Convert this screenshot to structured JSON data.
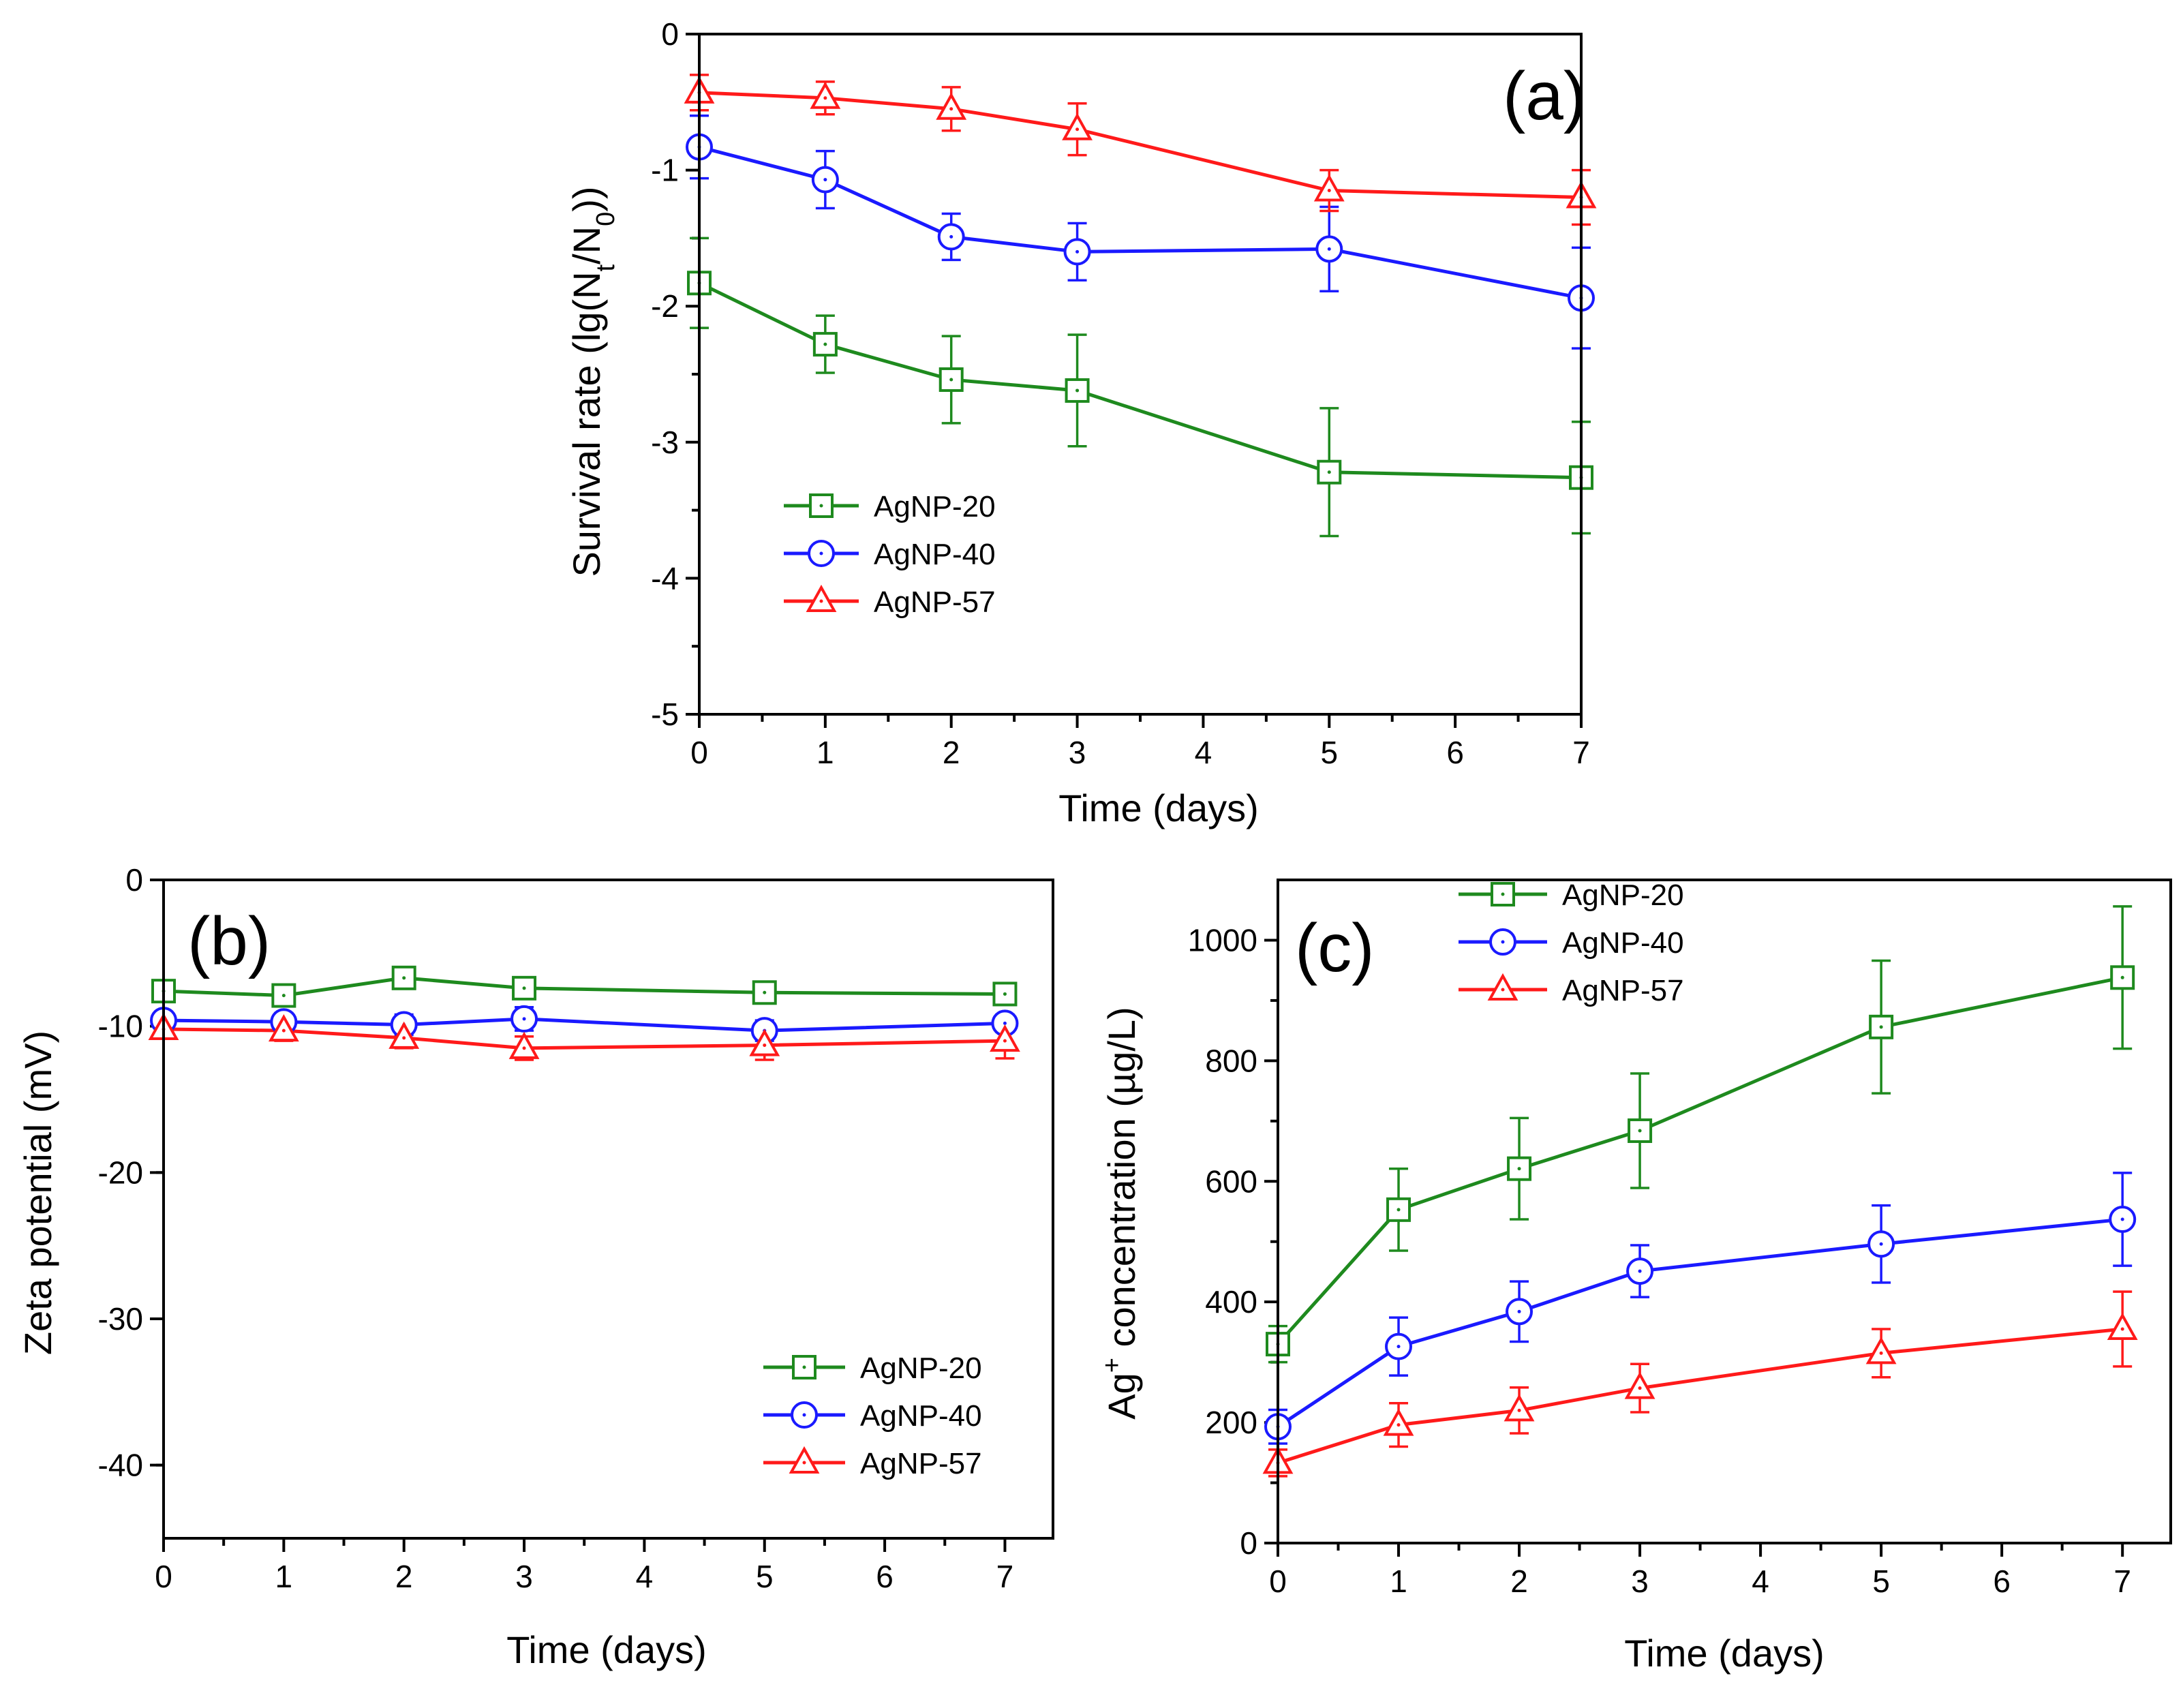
{
  "chart_data": [
    {
      "type": "line",
      "panel_label": "(a)",
      "title": "",
      "xlabel": "Time (days)",
      "ylabel_main": "Survival rate (lg(N",
      "ylabel_sub_t": "t",
      "ylabel_mid": "/N",
      "ylabel_sub_0": "0",
      "ylabel_end": "))",
      "xlim": [
        0,
        7
      ],
      "ylim": [
        -5,
        0
      ],
      "x_ticks": [
        "0",
        "1",
        "2",
        "3",
        "4",
        "5",
        "6",
        "7"
      ],
      "y_ticks": [
        "0",
        "-1",
        "-2",
        "-3",
        "-4",
        "-5"
      ],
      "x": [
        0,
        1,
        2,
        3,
        5,
        7
      ],
      "legend_position": "lower-left",
      "series": [
        {
          "name": "AgNP-20",
          "color": "#1e8a1e",
          "marker": "square",
          "values": [
            -1.83,
            -2.28,
            -2.54,
            -2.62,
            -3.22,
            -3.26
          ],
          "errors": [
            0.33,
            0.21,
            0.32,
            0.41,
            0.47,
            0.41
          ]
        },
        {
          "name": "AgNP-40",
          "color": "#1a1aff",
          "marker": "circle",
          "values": [
            -0.83,
            -1.07,
            -1.49,
            -1.6,
            -1.58,
            -1.94
          ],
          "errors": [
            0.23,
            0.21,
            0.17,
            0.21,
            0.31,
            0.37
          ]
        },
        {
          "name": "AgNP-57",
          "color": "#ff1a1a",
          "marker": "triangle",
          "values": [
            -0.43,
            -0.47,
            -0.55,
            -0.7,
            -1.15,
            -1.2
          ],
          "errors": [
            0.13,
            0.12,
            0.16,
            0.19,
            0.15,
            0.2
          ]
        }
      ]
    },
    {
      "type": "line",
      "panel_label": "(b)",
      "title": "",
      "xlabel": "Time (days)",
      "ylabel": "Zeta potential (mV)",
      "xlim": [
        0,
        7.4
      ],
      "ylim": [
        -45,
        0
      ],
      "x_ticks": [
        "0",
        "1",
        "2",
        "3",
        "4",
        "5",
        "6",
        "7"
      ],
      "y_ticks": [
        "0",
        "-10",
        "-20",
        "-30",
        "-40"
      ],
      "x": [
        0,
        1,
        2,
        3,
        5,
        7
      ],
      "legend_position": "lower-right",
      "series": [
        {
          "name": "AgNP-20",
          "color": "#1e8a1e",
          "marker": "square",
          "values": [
            -7.6,
            -7.9,
            -6.7,
            -7.4,
            -7.7,
            -7.8
          ],
          "errors": [
            0.4,
            0.5,
            0.5,
            0.5,
            0.4,
            0.4
          ]
        },
        {
          "name": "AgNP-40",
          "color": "#1a1aff",
          "marker": "circle",
          "values": [
            -9.6,
            -9.7,
            -9.9,
            -9.5,
            -10.3,
            -9.8
          ],
          "errors": [
            0.6,
            0.6,
            0.7,
            0.8,
            0.7,
            0.6
          ]
        },
        {
          "name": "AgNP-57",
          "color": "#ff1a1a",
          "marker": "triangle",
          "values": [
            -10.2,
            -10.3,
            -10.8,
            -11.5,
            -11.3,
            -11.0
          ],
          "errors": [
            0.6,
            0.7,
            0.7,
            0.8,
            1.0,
            1.2
          ]
        }
      ]
    },
    {
      "type": "line",
      "panel_label": "(c)",
      "title": "",
      "xlabel": "Time (days)",
      "ylabel_pre": "Ag",
      "ylabel_sup": "+",
      "ylabel_post": " concentration (µg/L)",
      "xlim": [
        0,
        7.4
      ],
      "ylim": [
        0,
        1100
      ],
      "x_ticks": [
        "0",
        "1",
        "2",
        "3",
        "4",
        "5",
        "6",
        "7"
      ],
      "y_ticks": [
        "0",
        "200",
        "400",
        "600",
        "800",
        "1000"
      ],
      "x": [
        0,
        1,
        2,
        3,
        5,
        7
      ],
      "legend_position": "top-left",
      "series": [
        {
          "name": "AgNP-20",
          "color": "#1e8a1e",
          "marker": "square",
          "values": [
            330,
            553,
            621,
            684,
            856,
            938
          ],
          "errors": [
            30,
            68,
            84,
            95,
            110,
            118
          ]
        },
        {
          "name": "AgNP-40",
          "color": "#1a1aff",
          "marker": "circle",
          "values": [
            193,
            326,
            384,
            451,
            496,
            537
          ],
          "errors": [
            28,
            48,
            50,
            43,
            64,
            77
          ]
        },
        {
          "name": "AgNP-57",
          "color": "#ff1a1a",
          "marker": "triangle",
          "values": [
            133,
            196,
            220,
            257,
            315,
            355
          ],
          "errors": [
            22,
            36,
            38,
            40,
            40,
            62
          ]
        }
      ]
    }
  ]
}
